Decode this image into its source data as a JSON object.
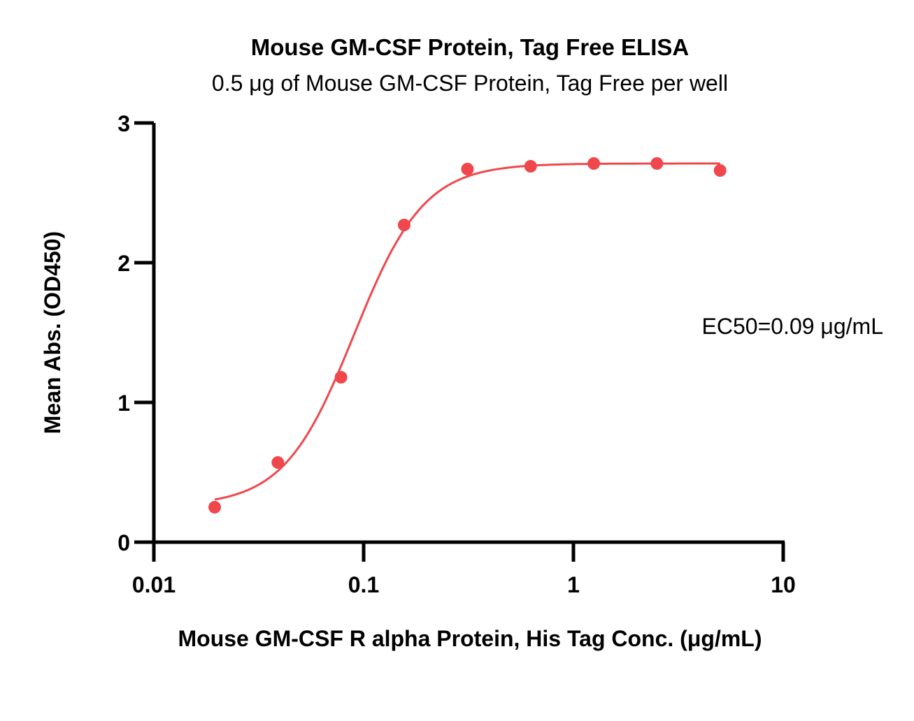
{
  "chart_data": {
    "type": "scatter",
    "title": "Mouse GM-CSF Protein, Tag Free ELISA",
    "subtitle": "0.5 μg of Mouse GM-CSF Protein, Tag Free per well",
    "xlabel": "Mouse GM-CSF R alpha Protein, His Tag Conc. (μg/mL)",
    "ylabel": "Mean Abs. (OD450)",
    "x_scale": "log",
    "xlim": [
      0.01,
      10
    ],
    "ylim": [
      0,
      3
    ],
    "x_ticks": [
      0.01,
      0.1,
      1,
      10
    ],
    "x_tick_labels": [
      "0.01",
      "0.1",
      "1",
      "10"
    ],
    "y_ticks": [
      0,
      1,
      2,
      3
    ],
    "y_tick_labels": [
      "0",
      "1",
      "2",
      "3"
    ],
    "grid": false,
    "series": [
      {
        "type": "scatter",
        "color": "#f0474c",
        "x": [
          0.0195,
          0.039,
          0.078,
          0.156,
          0.3125,
          0.625,
          1.25,
          2.5,
          5.0
        ],
        "y": [
          0.25,
          0.57,
          1.18,
          2.27,
          2.67,
          2.69,
          2.71,
          2.71,
          2.66
        ]
      },
      {
        "type": "fit-curve",
        "color": "#f0474c",
        "model": "4PL",
        "bottom": 0.26,
        "top": 2.71,
        "ec50": 0.09,
        "hill": 2.6,
        "x_range": [
          0.0195,
          5.0
        ]
      }
    ],
    "annotations": [
      {
        "text": "EC50=0.09 μg/mL"
      }
    ]
  }
}
